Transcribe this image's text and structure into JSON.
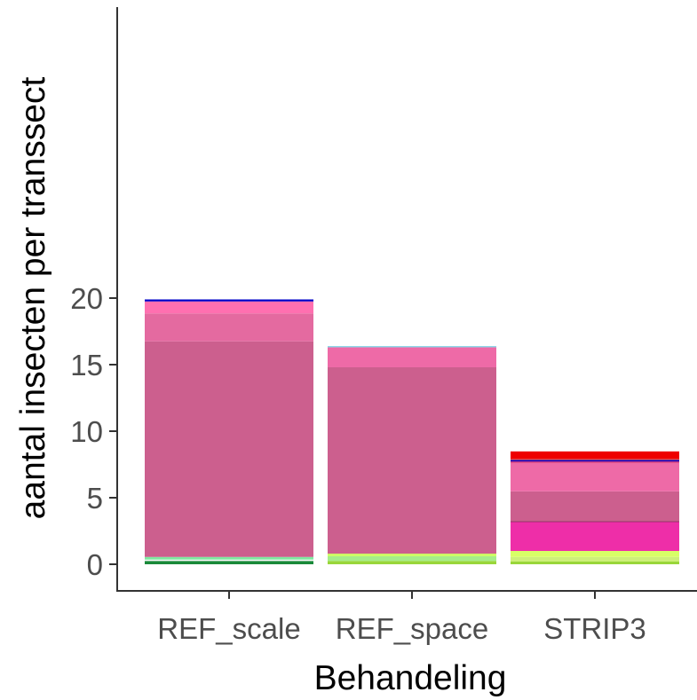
{
  "chart_data": {
    "type": "bar",
    "stacked": true,
    "xlabel": "Behandeling",
    "ylabel": "aantal insecten per transsect",
    "ylim": [
      0,
      20
    ],
    "yticks": [
      0,
      5,
      10,
      15,
      20
    ],
    "grid": false,
    "legend": "none",
    "categories": [
      "REF_scale",
      "REF_space",
      "STRIP3"
    ],
    "stacks": [
      {
        "category": "REF_scale",
        "segments": [
          {
            "value": 0.25,
            "color": "#1a8a3a"
          },
          {
            "value": 0.1,
            "color": "#fafafa"
          },
          {
            "value": 0.2,
            "color": "#7fe9a0"
          },
          {
            "value": 16.2,
            "color": "#cc5f8e"
          },
          {
            "value": 2.1,
            "color": "#e46aa0"
          },
          {
            "value": 0.9,
            "color": "#ff70b0"
          },
          {
            "value": 0.15,
            "color": "#0000c8"
          }
        ]
      },
      {
        "category": "REF_space",
        "segments": [
          {
            "value": 0.25,
            "color": "#99d63a"
          },
          {
            "value": 0.35,
            "color": "#a6ee8a"
          },
          {
            "value": 0.2,
            "color": "#ceff66"
          },
          {
            "value": 14.0,
            "color": "#cc5f8e"
          },
          {
            "value": 1.5,
            "color": "#ee6aa7"
          },
          {
            "value": 0.1,
            "color": "#8ed8e8"
          }
        ]
      },
      {
        "category": "STRIP3",
        "segments": [
          {
            "value": 0.2,
            "color": "#99d63a"
          },
          {
            "value": 0.35,
            "color": "#cdf07a"
          },
          {
            "value": 0.45,
            "color": "#d8ff66"
          },
          {
            "value": 2.2,
            "color": "#ee2ea8"
          },
          {
            "value": 0.03,
            "color": "#7a2a50"
          },
          {
            "value": 2.25,
            "color": "#cc5f8e"
          },
          {
            "value": 2.15,
            "color": "#ee6aa7"
          },
          {
            "value": 0.1,
            "color": "#cc3377"
          },
          {
            "value": 0.1,
            "color": "#0000cc"
          },
          {
            "value": 0.1,
            "color": "#dd4444"
          },
          {
            "value": 0.55,
            "color": "#ee0000"
          }
        ]
      }
    ]
  }
}
